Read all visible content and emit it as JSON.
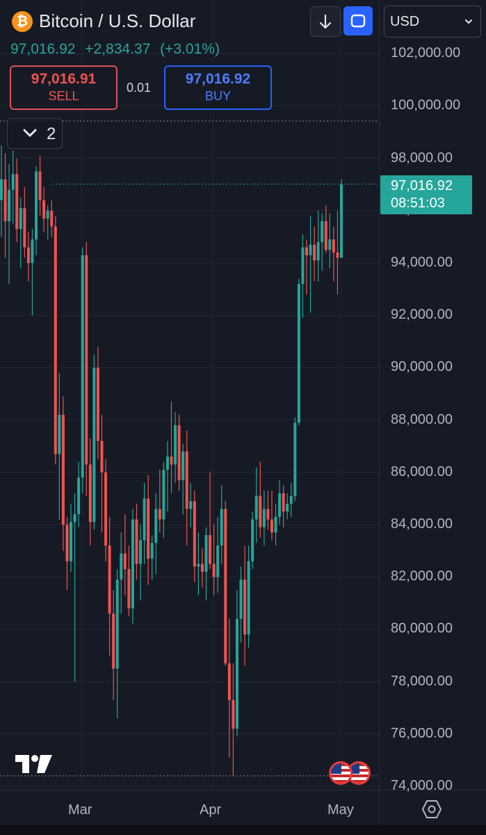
{
  "header": {
    "logo_icon": "bitcoin-icon",
    "title": "Bitcoin / U.S. Dollar",
    "price": "97,016.92",
    "change": "+2,834.37",
    "change_pct": "(+3.01%)",
    "change_color": "#26a69a"
  },
  "trade": {
    "sell_price": "97,016.91",
    "sell_label": "SELL",
    "spread": "0.01",
    "buy_price": "97,016.92",
    "buy_label": "BUY"
  },
  "toolbar": {
    "download_icon": "download-arrow-icon",
    "fullscreen_icon": "fullscreen-icon",
    "currency": "USD"
  },
  "indicator_toggle": {
    "count": "2"
  },
  "last_price_tag": {
    "price": "97,016.92",
    "countdown": "08:51:03"
  },
  "chart_data": {
    "type": "candlestick",
    "y_ticks": [
      "102,000.00",
      "100,000.00",
      "98,000.00",
      "96,000.00",
      "94,000.00",
      "92,000.00",
      "90,000.00",
      "88,000.00",
      "86,000.00",
      "84,000.00",
      "82,000.00",
      "80,000.00",
      "78,000.00",
      "76,000.00",
      "74,000.00"
    ],
    "x_labels": [
      "Mar",
      "Apr",
      "May"
    ],
    "ylim": [
      74000,
      103000
    ],
    "last_price": 97016.92,
    "up_color": "#26a69a",
    "down_color": "#ef5350",
    "candles": [
      [
        96400,
        98500,
        95000,
        97200
      ],
      [
        97200,
        98200,
        94200,
        95600
      ],
      [
        95600,
        97800,
        93200,
        96800
      ],
      [
        96800,
        98300,
        95500,
        97400
      ],
      [
        97400,
        98000,
        94800,
        95300
      ],
      [
        95300,
        96500,
        93800,
        96100
      ],
      [
        96100,
        96900,
        94200,
        94600
      ],
      [
        94600,
        95200,
        93300,
        94000
      ],
      [
        94000,
        95300,
        92000,
        94900
      ],
      [
        94900,
        97700,
        94300,
        97500
      ],
      [
        97500,
        98100,
        95800,
        96400
      ],
      [
        96400,
        96900,
        95200,
        95700
      ],
      [
        95700,
        96200,
        94900,
        96000
      ],
      [
        96000,
        96400,
        95000,
        95400
      ],
      [
        95400,
        95800,
        86300,
        86700
      ],
      [
        86700,
        89800,
        84200,
        88200
      ],
      [
        88200,
        88900,
        83000,
        84000
      ],
      [
        84000,
        84300,
        81500,
        82600
      ],
      [
        82600,
        84800,
        82200,
        84100
      ],
      [
        84100,
        85200,
        78000,
        84400
      ],
      [
        84400,
        86400,
        83900,
        85800
      ],
      [
        85800,
        94600,
        85200,
        94300
      ],
      [
        94300,
        94800,
        85100,
        86300
      ],
      [
        86300,
        87300,
        83200,
        84100
      ],
      [
        84100,
        90500,
        83800,
        90000
      ],
      [
        90000,
        90800,
        86500,
        87200
      ],
      [
        87200,
        88200,
        83700,
        86000
      ],
      [
        86000,
        86500,
        82600,
        83200
      ],
      [
        83200,
        84300,
        79000,
        80600
      ],
      [
        80600,
        81500,
        77300,
        78500
      ],
      [
        78500,
        82300,
        76600,
        81900
      ],
      [
        81900,
        83700,
        80600,
        82900
      ],
      [
        82900,
        84400,
        81300,
        82300
      ],
      [
        82300,
        83200,
        80500,
        80800
      ],
      [
        80800,
        84600,
        80200,
        84200
      ],
      [
        84200,
        84800,
        81900,
        82500
      ],
      [
        82500,
        84000,
        81100,
        83400
      ],
      [
        83400,
        85600,
        82500,
        85000
      ],
      [
        85000,
        85900,
        81700,
        82700
      ],
      [
        82700,
        83600,
        81900,
        83300
      ],
      [
        83300,
        85200,
        82100,
        84600
      ],
      [
        84600,
        86100,
        83700,
        84200
      ],
      [
        84200,
        86400,
        83500,
        86100
      ],
      [
        86100,
        87200,
        84500,
        86600
      ],
      [
        86600,
        88700,
        85200,
        86300
      ],
      [
        86300,
        88300,
        85600,
        87800
      ],
      [
        87800,
        88200,
        85300,
        85700
      ],
      [
        85700,
        87100,
        84400,
        86800
      ],
      [
        86800,
        87600,
        83200,
        84600
      ],
      [
        84600,
        85600,
        83900,
        84900
      ],
      [
        84900,
        85300,
        81800,
        82400
      ],
      [
        82400,
        83700,
        81300,
        82500
      ],
      [
        82500,
        83100,
        81600,
        82200
      ],
      [
        82200,
        83900,
        81100,
        83600
      ],
      [
        83600,
        86000,
        82300,
        82500
      ],
      [
        82500,
        84000,
        81300,
        82000
      ],
      [
        82000,
        84300,
        81400,
        83200
      ],
      [
        83200,
        85500,
        82500,
        84600
      ],
      [
        84600,
        84900,
        78600,
        78700
      ],
      [
        78700,
        80400,
        75100,
        77300
      ],
      [
        77300,
        78700,
        74400,
        76200
      ],
      [
        76200,
        81500,
        75900,
        80400
      ],
      [
        80400,
        82400,
        79500,
        81900
      ],
      [
        81900,
        83200,
        78600,
        79800
      ],
      [
        79800,
        83200,
        79300,
        82600
      ],
      [
        82600,
        84500,
        82300,
        84200
      ],
      [
        84200,
        86200,
        83300,
        85100
      ],
      [
        85100,
        86400,
        83500,
        83900
      ],
      [
        83900,
        85300,
        83200,
        84600
      ],
      [
        84600,
        85300,
        83800,
        84200
      ],
      [
        84200,
        85300,
        83400,
        83700
      ],
      [
        83700,
        84800,
        83200,
        84300
      ],
      [
        84300,
        85700,
        84000,
        85200
      ],
      [
        85200,
        85500,
        83900,
        84500
      ],
      [
        84500,
        85200,
        84200,
        84800
      ],
      [
        84800,
        85600,
        84300,
        85100
      ],
      [
        85100,
        88100,
        84900,
        87900
      ],
      [
        87900,
        93400,
        87800,
        93200
      ],
      [
        93200,
        95100,
        91900,
        94600
      ],
      [
        94600,
        94900,
        92800,
        94300
      ],
      [
        94300,
        95800,
        92100,
        94700
      ],
      [
        94700,
        95400,
        93300,
        94100
      ],
      [
        94100,
        96000,
        93300,
        94800
      ],
      [
        94800,
        95900,
        93700,
        95600
      ],
      [
        95600,
        96200,
        94400,
        94500
      ],
      [
        94500,
        95900,
        93800,
        94900
      ],
      [
        94900,
        95400,
        93300,
        94400
      ],
      [
        94400,
        96000,
        92800,
        94200
      ],
      [
        94200,
        97200,
        94200,
        97017
      ]
    ]
  }
}
